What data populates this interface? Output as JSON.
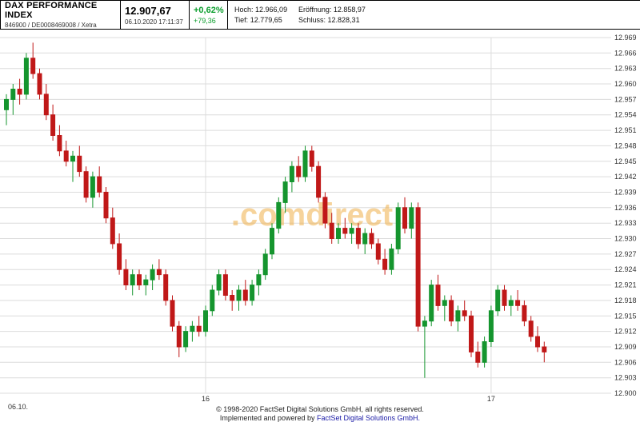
{
  "header": {
    "title": "DAX PERFORMANCE INDEX",
    "subtitle": "846900 / DE0008469008 / Xetra",
    "price": "12.907,67",
    "timestamp": "06.10.2020 17:11:37",
    "change_pct": "+0,62%",
    "change_abs": "+79,36",
    "stats": {
      "row1": [
        {
          "label": "Hoch:",
          "value": "12.966,09"
        },
        {
          "label": "Eröffnung:",
          "value": "12.858,97"
        }
      ],
      "row2": [
        {
          "label": "Tief:",
          "value": "12.779,65"
        },
        {
          "label": "Schluss:",
          "value": "12.828,31"
        }
      ]
    }
  },
  "watermark": ".comdirect",
  "footer": {
    "line1": "© 1998-2020 FactSet Digital Solutions GmbH, all rights reserved.",
    "line2_prefix": "Implemented and powered by ",
    "line2_link": "FactSet Digital Solutions GmbH."
  },
  "chart_data": {
    "type": "candlestick",
    "title": "DAX PERFORMANCE INDEX intraday 06.10.2020",
    "y_axis": {
      "min": 12900,
      "max": 12969,
      "step": 3,
      "labels": [
        "12.969",
        "12.966",
        "12.963",
        "12.960",
        "12.957",
        "12.954",
        "12.951",
        "12.948",
        "12.945",
        "12.942",
        "12.939",
        "12.936",
        "12.933",
        "12.930",
        "12.927",
        "12.924",
        "12.921",
        "12.918",
        "12.915",
        "12.912",
        "12.909",
        "12.906",
        "12.903",
        "12.900"
      ]
    },
    "x_ticks": [
      {
        "label": "06.10.",
        "index": 0
      },
      {
        "label": "16",
        "index": 30
      },
      {
        "label": "17",
        "index": 73
      }
    ],
    "colors": {
      "up": "#15952e",
      "down": "#c01818",
      "grid": "#dcdcdc",
      "axis_text": "#333333",
      "watermark": "#f0b04a"
    },
    "candles": [
      [
        12955,
        12958,
        12952,
        12957
      ],
      [
        12957,
        12960,
        12954,
        12959
      ],
      [
        12959,
        12961,
        12956,
        12958
      ],
      [
        12958,
        12966,
        12957,
        12965
      ],
      [
        12965,
        12968,
        12961,
        12962
      ],
      [
        12962,
        12963,
        12957,
        12958
      ],
      [
        12958,
        12960,
        12953,
        12954
      ],
      [
        12954,
        12956,
        12949,
        12950
      ],
      [
        12950,
        12952,
        12946,
        12947
      ],
      [
        12947,
        12949,
        12944,
        12945
      ],
      [
        12945,
        12947,
        12941,
        12946
      ],
      [
        12946,
        12948,
        12942,
        12943
      ],
      [
        12943,
        12944,
        12937,
        12938
      ],
      [
        12938,
        12943,
        12936,
        12942
      ],
      [
        12942,
        12944,
        12938,
        12939
      ],
      [
        12939,
        12940,
        12933,
        12934
      ],
      [
        12934,
        12936,
        12928,
        12929
      ],
      [
        12929,
        12931,
        12923,
        12924
      ],
      [
        12924,
        12926,
        12920,
        12921
      ],
      [
        12921,
        12924,
        12919,
        12923
      ],
      [
        12923,
        12924,
        12920,
        12921
      ],
      [
        12921,
        12923,
        12919,
        12922
      ],
      [
        12922,
        12925,
        12920,
        12924
      ],
      [
        12924,
        12926,
        12922,
        12923
      ],
      [
        12923,
        12924,
        12917,
        12918
      ],
      [
        12918,
        12919,
        12912,
        12913
      ],
      [
        12913,
        12914,
        12907,
        12909
      ],
      [
        12909,
        12913,
        12908,
        12912
      ],
      [
        12912,
        12914,
        12910,
        12913
      ],
      [
        12913,
        12915,
        12911,
        12912
      ],
      [
        12912,
        12917,
        12911,
        12916
      ],
      [
        12916,
        12921,
        12915,
        12920
      ],
      [
        12920,
        12924,
        12919,
        12923
      ],
      [
        12923,
        12924,
        12918,
        12919
      ],
      [
        12919,
        12920,
        12916,
        12918
      ],
      [
        12918,
        12921,
        12916,
        12920
      ],
      [
        12920,
        12922,
        12917,
        12918
      ],
      [
        12918,
        12922,
        12917,
        12921
      ],
      [
        12921,
        12924,
        12919,
        12923
      ],
      [
        12923,
        12928,
        12922,
        12927
      ],
      [
        12927,
        12933,
        12926,
        12932
      ],
      [
        12932,
        12938,
        12931,
        12937
      ],
      [
        12937,
        12942,
        12935,
        12941
      ],
      [
        12941,
        12945,
        12939,
        12944
      ],
      [
        12944,
        12946,
        12941,
        12942
      ],
      [
        12942,
        12948,
        12941,
        12947
      ],
      [
        12947,
        12948,
        12943,
        12944
      ],
      [
        12944,
        12945,
        12937,
        12938
      ],
      [
        12938,
        12939,
        12932,
        12933
      ],
      [
        12933,
        12935,
        12929,
        12930
      ],
      [
        12930,
        12933,
        12929,
        12932
      ],
      [
        12932,
        12934,
        12930,
        12931
      ],
      [
        12931,
        12933,
        12929,
        12932
      ],
      [
        12932,
        12933,
        12928,
        12929
      ],
      [
        12929,
        12932,
        12927,
        12931
      ],
      [
        12931,
        12932,
        12928,
        12929
      ],
      [
        12929,
        12930,
        12925,
        12926
      ],
      [
        12926,
        12928,
        12923,
        12924
      ],
      [
        12924,
        12929,
        12923,
        12928
      ],
      [
        12928,
        12937,
        12927,
        12936
      ],
      [
        12936,
        12938,
        12931,
        12932
      ],
      [
        12932,
        12937,
        12930,
        12936
      ],
      [
        12936,
        12937,
        12912,
        12913
      ],
      [
        12913,
        12915,
        12903,
        12914
      ],
      [
        12914,
        12922,
        12913,
        12921
      ],
      [
        12921,
        12923,
        12916,
        12917
      ],
      [
        12917,
        12919,
        12914,
        12918
      ],
      [
        12918,
        12919,
        12913,
        12914
      ],
      [
        12914,
        12917,
        12912,
        12916
      ],
      [
        12916,
        12918,
        12914,
        12915
      ],
      [
        12915,
        12916,
        12907,
        12908
      ],
      [
        12908,
        12910,
        12905,
        12906
      ],
      [
        12906,
        12911,
        12905,
        12910
      ],
      [
        12910,
        12917,
        12909,
        12916
      ],
      [
        12916,
        12921,
        12915,
        12920
      ],
      [
        12920,
        12921,
        12916,
        12917
      ],
      [
        12917,
        12919,
        12915,
        12918
      ],
      [
        12918,
        12920,
        12916,
        12917
      ],
      [
        12917,
        12918,
        12913,
        12914
      ],
      [
        12914,
        12915,
        12910,
        12911
      ],
      [
        12911,
        12913,
        12908,
        12909
      ],
      [
        12909,
        12910,
        12906,
        12908
      ]
    ]
  }
}
